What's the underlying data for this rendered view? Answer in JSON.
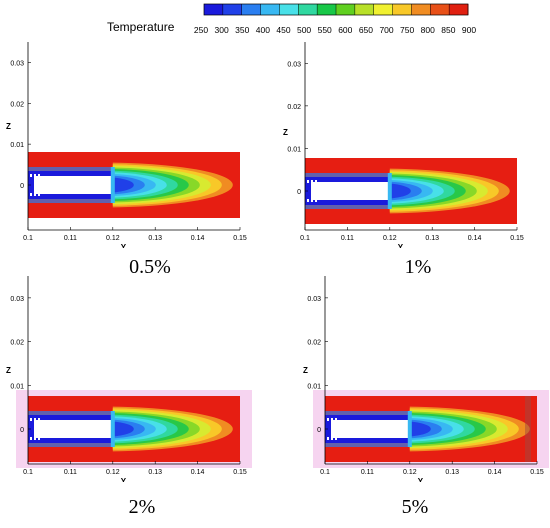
{
  "colorbar": {
    "title": "Temperature",
    "ticks": [
      "250",
      "300",
      "350",
      "400",
      "450",
      "500",
      "550",
      "600",
      "650",
      "700",
      "750",
      "800",
      "850",
      "900"
    ],
    "colors": [
      "#1a1adc",
      "#2040e8",
      "#2a7ef0",
      "#38b8f2",
      "#48e0e8",
      "#30d8a0",
      "#18c848",
      "#60d020",
      "#b8e028",
      "#f0f030",
      "#f8c828",
      "#f08c22",
      "#e85018",
      "#e02010"
    ]
  },
  "axes": {
    "ylabel": "Y",
    "zlabel": "Z",
    "x_ticks": [
      "0.1",
      "0.11",
      "0.12",
      "0.13",
      "0.14",
      "0.15"
    ],
    "z_ticks": [
      "0",
      "0.01",
      "0.02",
      "0.03"
    ]
  },
  "panels": [
    {
      "caption": "0.5%"
    },
    {
      "caption": "1%"
    },
    {
      "caption": "2%"
    },
    {
      "caption": "5%"
    }
  ]
}
